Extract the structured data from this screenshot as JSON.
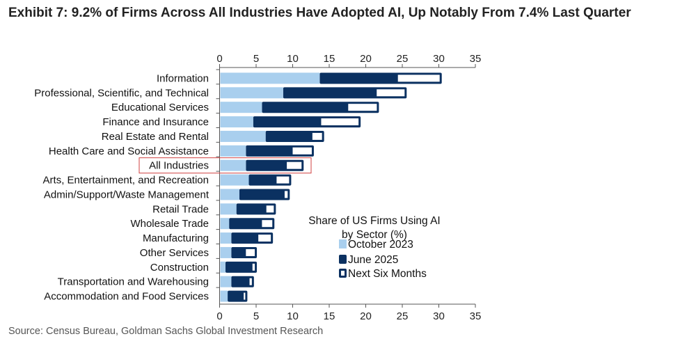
{
  "chart_data": {
    "type": "bar",
    "orientation": "horizontal",
    "title": "Exhibit 7: 9.2% of Firms Across All Industries Have Adopted AI, Up Notably From 7.4% Last Quarter",
    "source": "Source: Census Bureau, Goldman Sachs Global Investment Research",
    "legend_title": [
      "Share of US Firms Using AI",
      "by Sector (%)"
    ],
    "legend_placement": "bottom-right",
    "xlim": [
      0,
      35
    ],
    "xticks": [
      "0",
      "5",
      "10",
      "15",
      "20",
      "25",
      "30",
      "35"
    ],
    "highlighted_category": "All Industries",
    "categories": [
      "Information",
      "Professional, Scientific, and Technical",
      "Educational Services",
      "Finance and Insurance",
      "Real Estate and Rental",
      "Health Care and Social Assistance",
      "All Industries",
      "Arts, Entertainment, and Recreation",
      "Admin/Support/Waste Management",
      "Retail Trade",
      "Wholesale Trade",
      "Manufacturing",
      "Other Services",
      "Construction",
      "Transportation and Warehousing",
      "Accommodation and Food Services"
    ],
    "series": [
      {
        "name": "October 2023",
        "color": "#a9cfee",
        "values": [
          13.7,
          8.7,
          5.8,
          4.6,
          6.3,
          3.6,
          3.6,
          4.0,
          2.7,
          2.3,
          1.3,
          1.6,
          1.6,
          0.8,
          1.6,
          1.1
        ]
      },
      {
        "name": "June 2025",
        "color": "#0b3161",
        "values": [
          24.4,
          21.5,
          17.6,
          13.9,
          12.7,
          10.0,
          9.2,
          7.8,
          8.9,
          6.4,
          5.8,
          5.3,
          3.6,
          4.5,
          4.1,
          3.3
        ]
      },
      {
        "name": "Next Six Months",
        "color": "#ffffff",
        "values": [
          30.4,
          25.6,
          21.8,
          19.3,
          14.3,
          12.9,
          11.5,
          9.8,
          9.6,
          7.7,
          7.5,
          7.3,
          5.1,
          5.1,
          4.7,
          3.8
        ]
      }
    ]
  }
}
